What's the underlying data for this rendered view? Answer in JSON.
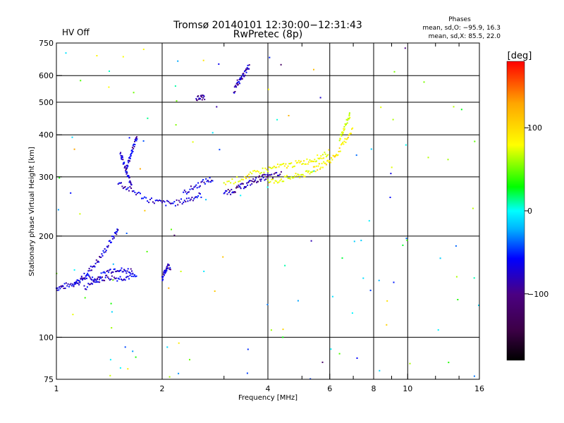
{
  "header": {
    "title_line1": "Tromsø 20140101 12:30:00−12:31:43",
    "title_line2": "RwPretec (8p)",
    "status": "HV Off",
    "status_color": "#cc0000",
    "phase_heading": "Phases",
    "phase_o": "mean, sd,O: −95.9, 16.3",
    "phase_x": "mean, sd,X: 85.5, 22.0"
  },
  "colorbar": {
    "unit_label": "[deg]",
    "ticks": [
      {
        "value": 100,
        "label": "100"
      },
      {
        "value": 0,
        "label": "0"
      },
      {
        "value": -100,
        "label": "−100"
      }
    ],
    "range": [
      -180,
      180
    ],
    "colors": [
      "#000000",
      "#3c0046",
      "#4b0082",
      "#0000ff",
      "#00b4ff",
      "#00ffff",
      "#00ff00",
      "#ffff00",
      "#ffa500",
      "#ff0000"
    ]
  },
  "chart_data": {
    "type": "scatter",
    "title": "Tromsø 20140101 12:30:00−12:31:43",
    "subtitle": "RwPretec (8p)",
    "xlabel": "Frequency [MHz]",
    "ylabel": "Stationary phase Virtual Height [km]",
    "x_scale": "log",
    "y_scale": "log",
    "xlim": [
      1,
      16
    ],
    "ylim": [
      75,
      750
    ],
    "x_ticks": [
      {
        "value": 1,
        "label": "1"
      },
      {
        "value": 2,
        "label": "2"
      },
      {
        "value": 4,
        "label": "4"
      },
      {
        "value": 6,
        "label": "6"
      },
      {
        "value": 8,
        "label": "8"
      },
      {
        "value": 10,
        "label": "10"
      },
      {
        "value": 16,
        "label": "16"
      }
    ],
    "x_minor": [
      3,
      5,
      7,
      9,
      12,
      14
    ],
    "y_ticks": [
      {
        "value": 75,
        "label": "75"
      },
      {
        "value": 100,
        "label": "100"
      },
      {
        "value": 200,
        "label": "200"
      },
      {
        "value": 300,
        "label": "300"
      },
      {
        "value": 400,
        "label": "400"
      },
      {
        "value": 500,
        "label": "500"
      },
      {
        "value": 600,
        "label": "600"
      },
      {
        "value": 750,
        "label": "750"
      }
    ],
    "grid": true,
    "traces": [
      {
        "id": "low-layer-flat",
        "phase": -105,
        "points": [
          [
            1.0,
            140
          ],
          [
            1.03,
            141
          ],
          [
            1.06,
            142
          ],
          [
            1.1,
            144
          ],
          [
            1.14,
            146
          ],
          [
            1.18,
            149
          ],
          [
            1.22,
            151
          ],
          [
            1.26,
            150
          ],
          [
            1.3,
            148
          ],
          [
            1.34,
            149
          ],
          [
            1.4,
            151
          ],
          [
            1.46,
            150
          ],
          [
            1.52,
            150
          ],
          [
            1.58,
            151
          ],
          [
            1.64,
            152
          ],
          [
            1.7,
            151
          ]
        ]
      },
      {
        "id": "low-layer-riser",
        "phase": -105,
        "points": [
          [
            1.12,
            142
          ],
          [
            1.16,
            146
          ],
          [
            1.2,
            152
          ],
          [
            1.24,
            158
          ],
          [
            1.28,
            164
          ],
          [
            1.32,
            170
          ],
          [
            1.36,
            178
          ],
          [
            1.4,
            187
          ],
          [
            1.44,
            196
          ],
          [
            1.48,
            205
          ],
          [
            1.5,
            210
          ]
        ]
      },
      {
        "id": "low-layer-band",
        "phase": -105,
        "points": [
          [
            1.2,
            140
          ],
          [
            1.25,
            144
          ],
          [
            1.3,
            149
          ],
          [
            1.35,
            153
          ],
          [
            1.4,
            157
          ],
          [
            1.45,
            159
          ],
          [
            1.5,
            160
          ],
          [
            1.55,
            157
          ],
          [
            1.6,
            158
          ],
          [
            1.66,
            158
          ]
        ]
      },
      {
        "id": "low-layer-two",
        "phase": -105,
        "points": [
          [
            2.0,
            150
          ],
          [
            2.02,
            153
          ],
          [
            2.04,
            157
          ],
          [
            2.06,
            161
          ],
          [
            2.08,
            163
          ],
          [
            2.12,
            162
          ]
        ]
      },
      {
        "id": "f-upper-cusp",
        "phase": -105,
        "points": [
          [
            1.52,
            355
          ],
          [
            1.54,
            340
          ],
          [
            1.56,
            325
          ],
          [
            1.58,
            310
          ],
          [
            1.6,
            300
          ],
          [
            1.62,
            292
          ],
          [
            1.64,
            286
          ]
        ]
      },
      {
        "id": "f-vertical",
        "phase": -105,
        "points": [
          [
            1.58,
            320
          ],
          [
            1.6,
            330
          ],
          [
            1.62,
            342
          ],
          [
            1.64,
            355
          ],
          [
            1.66,
            370
          ],
          [
            1.68,
            385
          ],
          [
            1.7,
            395
          ]
        ]
      },
      {
        "id": "f-low-trace",
        "phase": -105,
        "points": [
          [
            1.5,
            290
          ],
          [
            1.56,
            280
          ],
          [
            1.62,
            275
          ],
          [
            1.7,
            268
          ],
          [
            1.8,
            258
          ],
          [
            1.9,
            254
          ],
          [
            2.0,
            251
          ],
          [
            2.1,
            250
          ],
          [
            2.2,
            251
          ],
          [
            2.3,
            254
          ],
          [
            2.4,
            258
          ],
          [
            2.5,
            262
          ],
          [
            2.6,
            266
          ]
        ]
      },
      {
        "id": "f-upper-trace",
        "phase": -105,
        "points": [
          [
            2.3,
            268
          ],
          [
            2.4,
            275
          ],
          [
            2.5,
            282
          ],
          [
            2.6,
            288
          ],
          [
            2.7,
            293
          ],
          [
            2.8,
            295
          ]
        ]
      },
      {
        "id": "f-mid-cluster",
        "phase": -115,
        "points": [
          [
            3.0,
            268
          ],
          [
            3.1,
            270
          ],
          [
            3.2,
            274
          ],
          [
            3.3,
            278
          ],
          [
            3.4,
            282
          ],
          [
            3.5,
            285
          ],
          [
            3.6,
            290
          ],
          [
            3.7,
            293
          ],
          [
            3.8,
            297
          ],
          [
            3.9,
            299
          ],
          [
            4.0,
            300
          ],
          [
            4.2,
            303
          ],
          [
            4.4,
            306
          ]
        ]
      },
      {
        "id": "f-x-trace",
        "phase": 100,
        "points": [
          [
            3.0,
            288
          ],
          [
            3.2,
            292
          ],
          [
            3.4,
            298
          ],
          [
            3.6,
            305
          ],
          [
            3.8,
            312
          ],
          [
            4.0,
            316
          ],
          [
            4.2,
            320
          ],
          [
            4.4,
            323
          ],
          [
            4.6,
            325
          ],
          [
            4.8,
            328
          ],
          [
            5.0,
            331
          ],
          [
            5.2,
            334
          ],
          [
            5.4,
            338
          ],
          [
            5.6,
            343
          ],
          [
            5.8,
            348
          ],
          [
            6.0,
            356
          ]
        ]
      },
      {
        "id": "f-x-upper",
        "phase": 110,
        "points": [
          [
            5.4,
            315
          ],
          [
            5.6,
            322
          ],
          [
            5.8,
            328
          ],
          [
            6.0,
            335
          ],
          [
            6.2,
            346
          ],
          [
            6.4,
            360
          ],
          [
            6.6,
            380
          ],
          [
            6.8,
            400
          ],
          [
            7.0,
            420
          ]
        ]
      },
      {
        "id": "f-x-lower",
        "phase": 95,
        "points": [
          [
            4.0,
            290
          ],
          [
            4.2,
            292
          ],
          [
            4.4,
            295
          ],
          [
            4.6,
            298
          ],
          [
            4.8,
            301
          ],
          [
            5.0,
            304
          ],
          [
            5.2,
            307
          ],
          [
            5.4,
            310
          ]
        ]
      },
      {
        "id": "f-x-cusp",
        "phase": 90,
        "points": [
          [
            6.4,
            390
          ],
          [
            6.5,
            405
          ],
          [
            6.6,
            420
          ],
          [
            6.7,
            435
          ],
          [
            6.8,
            450
          ],
          [
            6.85,
            460
          ]
        ]
      },
      {
        "id": "high-echo",
        "phase": -110,
        "points": [
          [
            3.2,
            540
          ],
          [
            3.25,
            555
          ],
          [
            3.3,
            570
          ],
          [
            3.35,
            585
          ],
          [
            3.4,
            600
          ],
          [
            3.45,
            615
          ],
          [
            3.5,
            630
          ],
          [
            3.55,
            645
          ]
        ]
      },
      {
        "id": "high-echo-2",
        "phase": -115,
        "points": [
          [
            2.5,
            512
          ],
          [
            2.55,
            514
          ],
          [
            2.6,
            517
          ],
          [
            2.65,
            520
          ]
        ]
      }
    ],
    "noise": {
      "count": 130,
      "phase_range": [
        -130,
        140
      ],
      "note": "sparse scattered echoes across the frequency band"
    }
  }
}
